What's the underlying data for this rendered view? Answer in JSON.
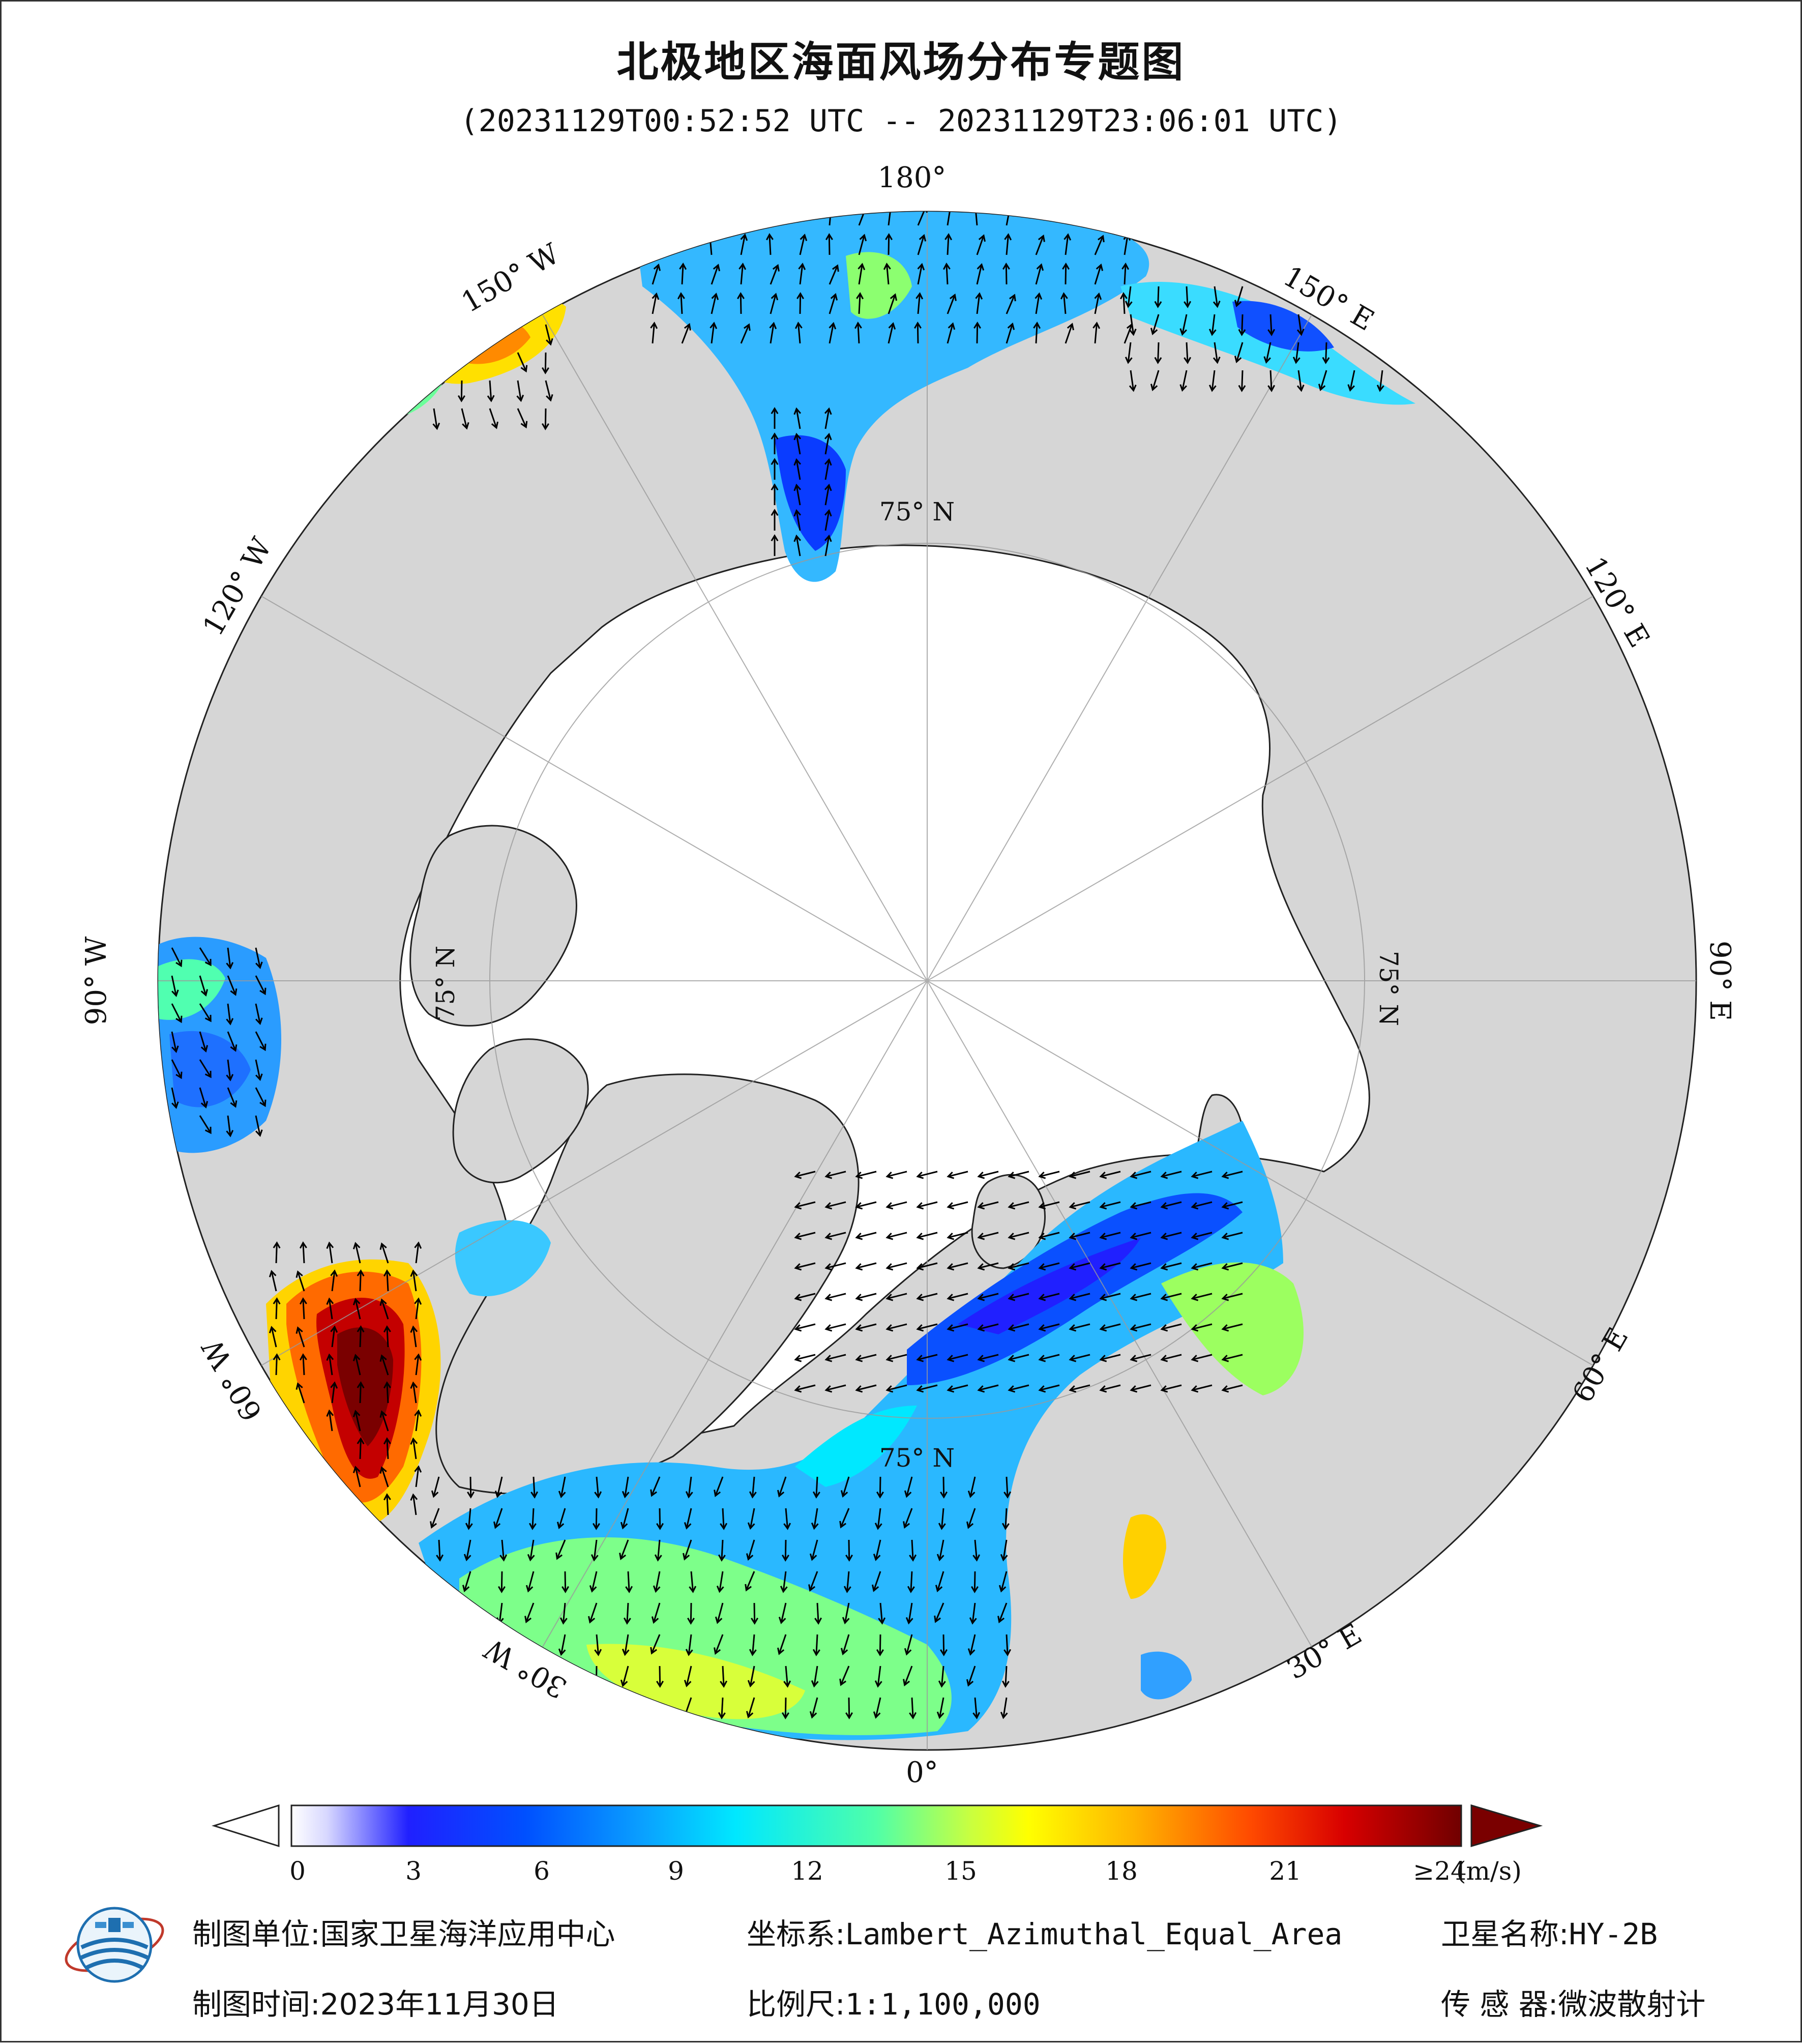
{
  "header": {
    "title": "北极地区海面风场分布专题图",
    "subtitle": "(20231129T00:52:52 UTC -- 20231129T23:06:01 UTC)"
  },
  "map": {
    "projection": "Lambert_Azimuthal_Equal_Area",
    "longitude_labels": [
      "180°",
      "150° E",
      "120° E",
      "90° E",
      "60° E",
      "30° E",
      "0°",
      "30° W",
      "60° W",
      "90° W",
      "120° W",
      "150° W"
    ],
    "latitude_labels": [
      "75° N",
      "75° N",
      "75° N",
      "75° N"
    ],
    "colors": {
      "ocean_disk": "#d6d6d6",
      "sea_ice": "#ffffff",
      "land_outline": "#222222"
    }
  },
  "colorbar": {
    "ticks": [
      "0",
      "3",
      "6",
      "9",
      "12",
      "15",
      "18",
      "21",
      "≥24"
    ],
    "unit": "(m/s)",
    "min": 0,
    "max": 24,
    "colors": [
      "#ffffff",
      "#c8c8ff",
      "#0000ff",
      "#0a64ff",
      "#00d8ff",
      "#5aff9a",
      "#c8ff32",
      "#ffff00",
      "#ffb000",
      "#ff4000",
      "#c80000",
      "#780000"
    ]
  },
  "footer": {
    "unit_label": "制图单位:",
    "unit_value": "国家卫星海洋应用中心",
    "coord_label": "坐标系:",
    "coord_value": "Lambert_Azimuthal_Equal_Area",
    "satellite_label": "卫星名称:",
    "satellite_value": "HY-2B",
    "date_label": "制图时间:",
    "date_value": "2023年11月30日",
    "scale_label": "比例尺:",
    "scale_value": "1:1,100,000",
    "sensor_label": "传 感 器:",
    "sensor_value": "微波散射计"
  }
}
